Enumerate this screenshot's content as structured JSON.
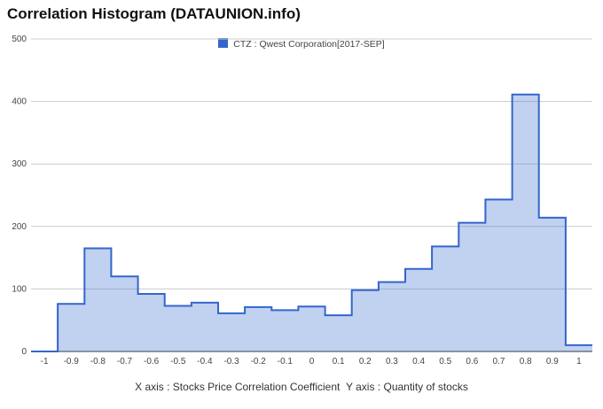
{
  "chart_data": {
    "type": "area",
    "title": "Correlation Histogram (DATAUNION.info)",
    "legend": "CTZ : Qwest Corporation[2017-SEP]",
    "legend_position": "top-center",
    "xlabel": "X axis : Stocks Price Correlation Coefficient",
    "ylabel": "Y axis : Quantity of stocks",
    "xlim": [
      -1.05,
      1.05
    ],
    "ylim": [
      0,
      500
    ],
    "grid": true,
    "x_ticks": [
      "-1",
      "-0.9",
      "-0.8",
      "-0.7",
      "-0.6",
      "-0.5",
      "-0.4",
      "-0.3",
      "-0.2",
      "-0.1",
      "0",
      "0.1",
      "0.2",
      "0.3",
      "0.4",
      "0.5",
      "0.6",
      "0.7",
      "0.8",
      "0.9",
      "1"
    ],
    "y_ticks": [
      "0",
      "100",
      "200",
      "300",
      "400",
      "500"
    ],
    "color": "#3366cc",
    "bins": [
      -1,
      -0.9,
      -0.8,
      -0.7,
      -0.6,
      -0.5,
      -0.4,
      -0.3,
      -0.2,
      -0.1,
      0,
      0.1,
      0.2,
      0.3,
      0.4,
      0.5,
      0.6,
      0.7,
      0.8,
      0.9,
      1
    ],
    "values": [
      0,
      76,
      165,
      120,
      92,
      73,
      78,
      61,
      71,
      66,
      72,
      58,
      98,
      111,
      132,
      168,
      206,
      243,
      411,
      214,
      10
    ]
  }
}
